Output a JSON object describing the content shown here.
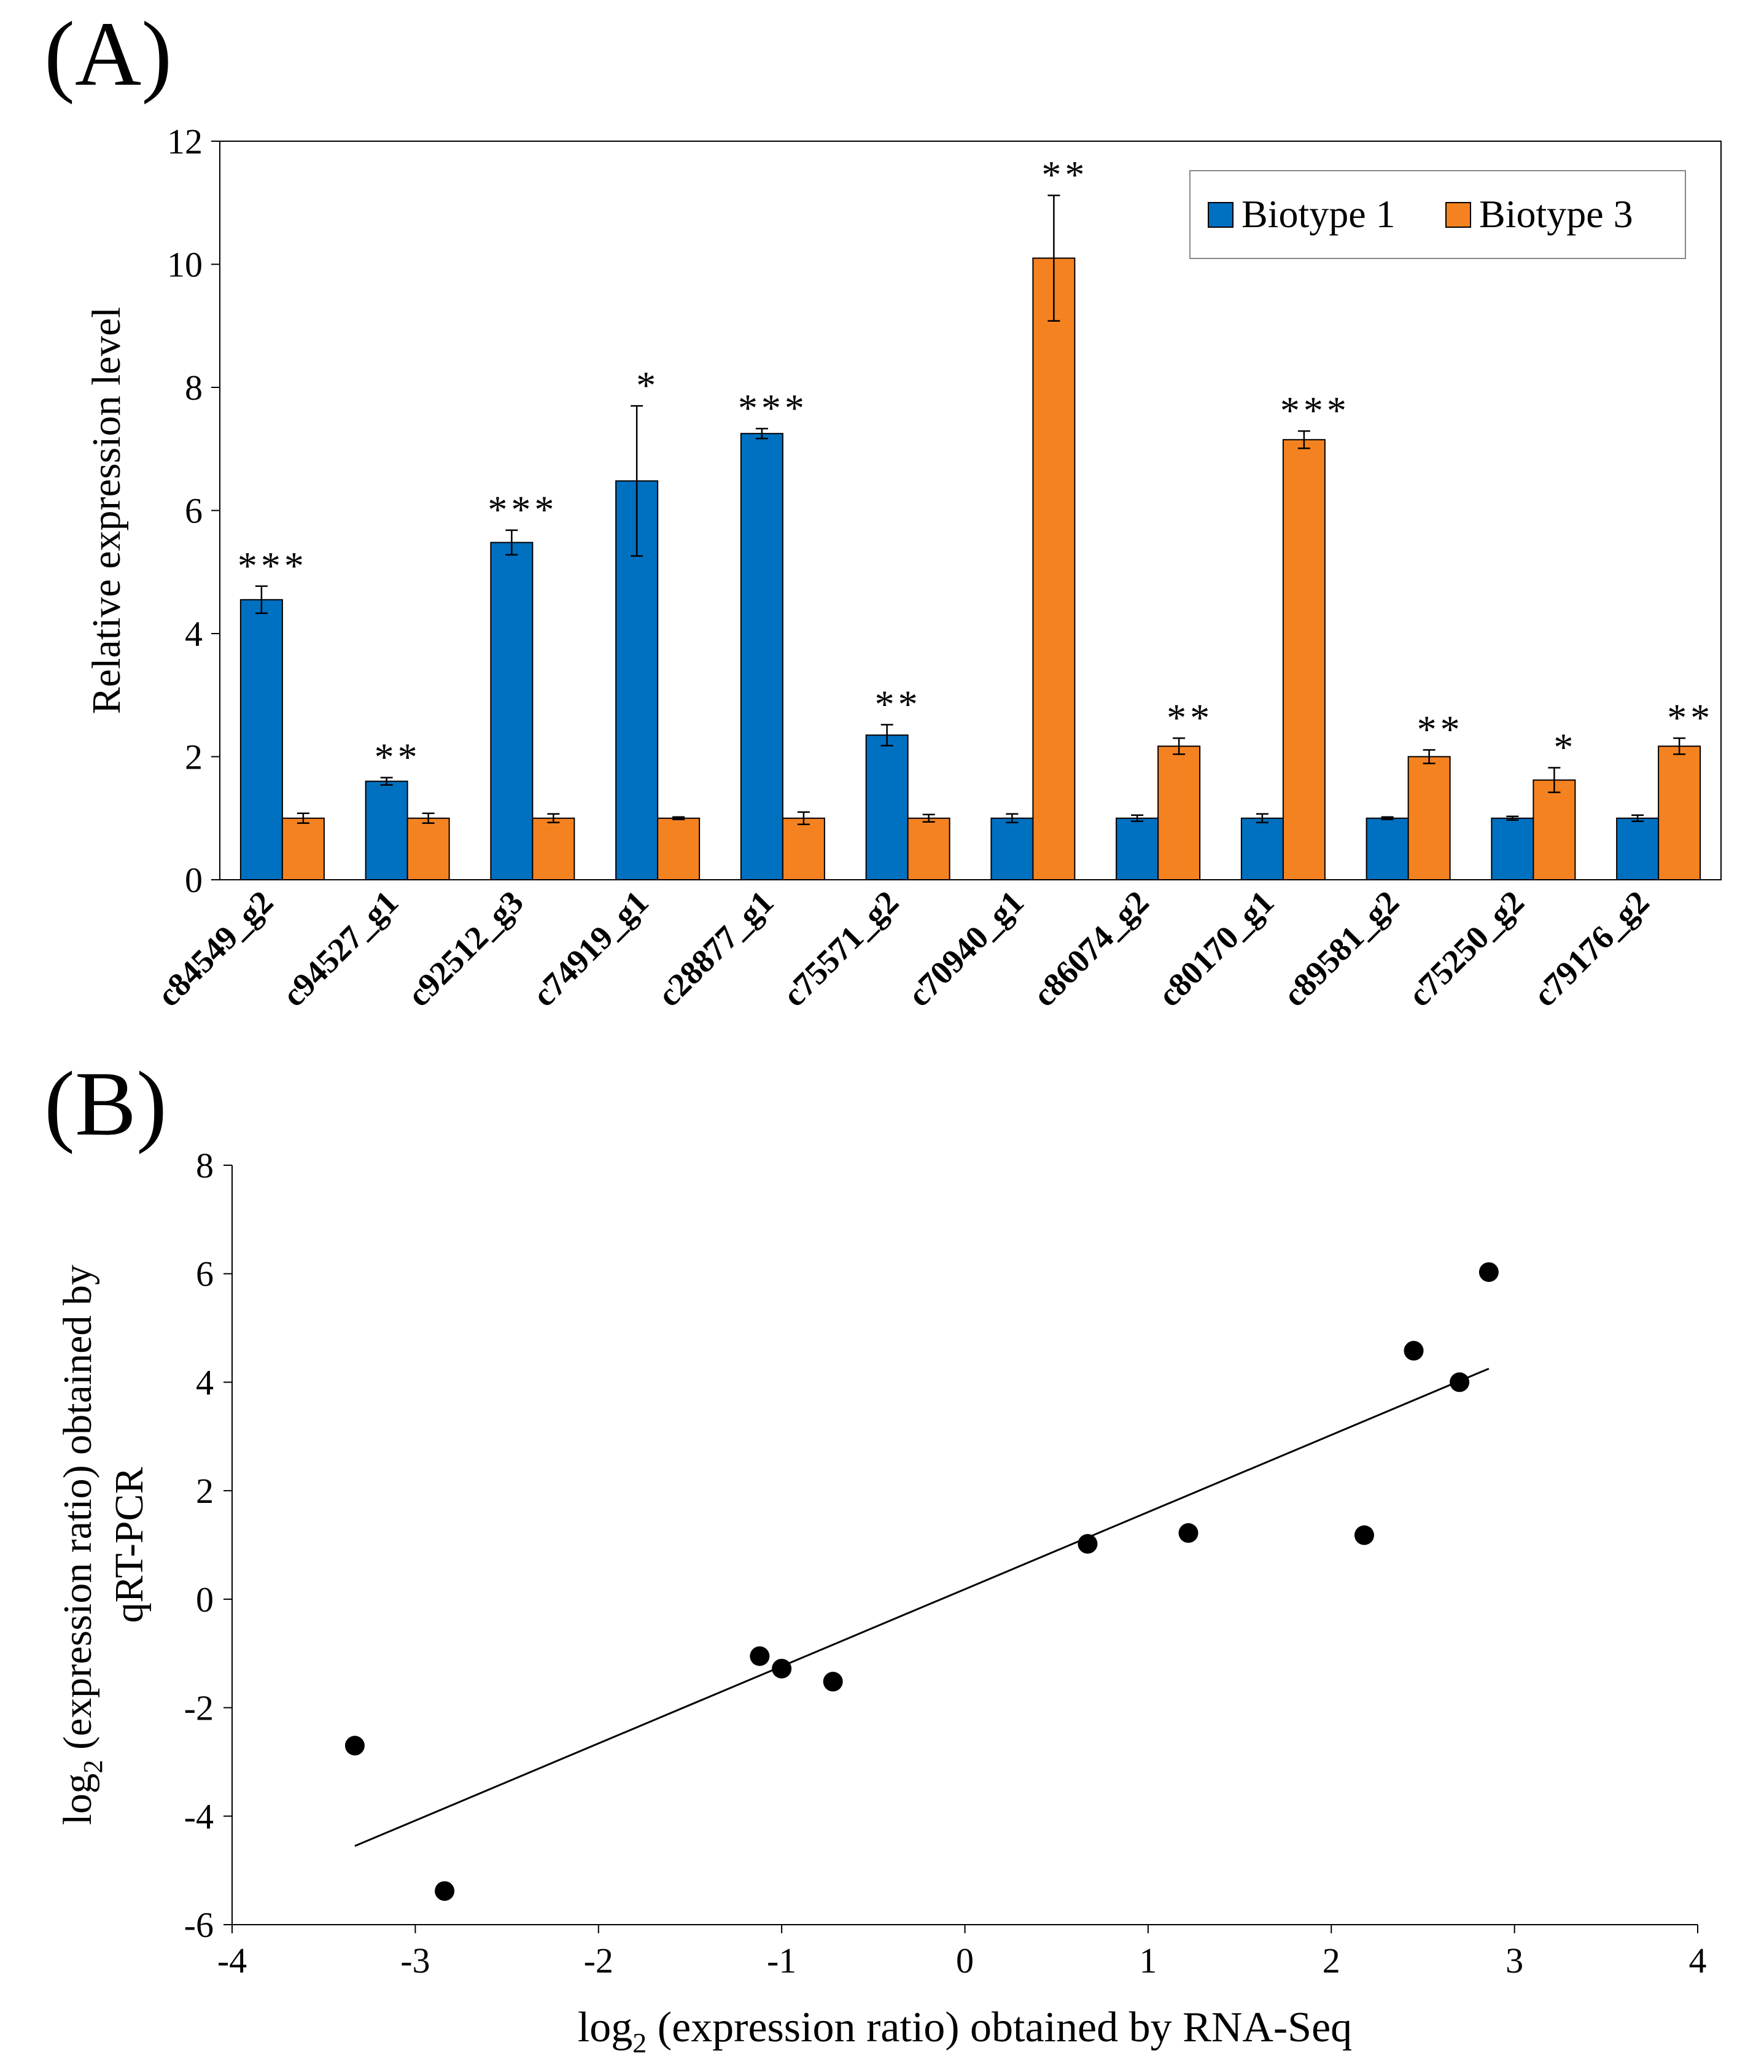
{
  "panel_labels": {
    "a": "(A)",
    "b": "(B)"
  },
  "colors": {
    "biotype1": "#0070C0",
    "biotype3": "#F58220",
    "axis": "#000000"
  },
  "chart_data": [
    {
      "type": "bar",
      "panel": "(A)",
      "xlabel": "",
      "ylabel": "Relative expression level",
      "ylim": [
        0,
        12
      ],
      "yticks": [
        0,
        2,
        4,
        6,
        8,
        10,
        12
      ],
      "legend_position": "top-right",
      "categories": [
        "c84549_g2",
        "c94527_g1",
        "c92512_g3",
        "c74919_g1",
        "c28877_g1",
        "c75571_g2",
        "c70940_g1",
        "c86074_g2",
        "c80170_g1",
        "c89581_g2",
        "c75250_g2",
        "c79176_g2"
      ],
      "series": [
        {
          "name": "Biotype 1",
          "values": [
            4.55,
            1.6,
            5.48,
            6.48,
            7.25,
            2.35,
            1.0,
            1.0,
            1.0,
            1.0,
            1.0,
            1.0
          ],
          "errors": [
            0.22,
            0.06,
            0.2,
            1.22,
            0.08,
            0.17,
            0.07,
            0.05,
            0.07,
            0.02,
            0.03,
            0.05
          ]
        },
        {
          "name": "Biotype 3",
          "values": [
            1.0,
            1.0,
            1.0,
            1.0,
            1.0,
            1.0,
            10.1,
            2.17,
            7.15,
            2.0,
            1.62,
            2.17
          ],
          "errors": [
            0.08,
            0.08,
            0.07,
            0.02,
            0.1,
            0.06,
            1.02,
            0.13,
            0.14,
            0.11,
            0.2,
            0.13
          ]
        }
      ],
      "significance": [
        "***",
        "**",
        "***",
        "*",
        "***",
        "**",
        "**",
        "**",
        "***",
        "**",
        "*",
        "**"
      ]
    },
    {
      "type": "scatter",
      "panel": "(B)",
      "xlabel_prefix": "log",
      "xlabel_sub": "2",
      "xlabel_rest": " (expression ratio) obtained by RNA-Seq",
      "ylabel_prefix": "log",
      "ylabel_sub": "2",
      "ylabel_rest": " (expression ratio) obtained by",
      "ylabel_line2": "qRT-PCR",
      "xlim": [
        -4,
        4
      ],
      "ylim": [
        -6,
        8
      ],
      "xticks": [
        -4,
        -3,
        -2,
        -1,
        0,
        1,
        2,
        3,
        4
      ],
      "yticks": [
        -6,
        -4,
        -2,
        0,
        2,
        4,
        6,
        8
      ],
      "points": [
        {
          "x": -3.33,
          "y": -2.7
        },
        {
          "x": -2.84,
          "y": -5.38
        },
        {
          "x": -1.12,
          "y": -1.05
        },
        {
          "x": -1.0,
          "y": -1.28
        },
        {
          "x": -0.72,
          "y": -1.52
        },
        {
          "x": 0.67,
          "y": 1.02
        },
        {
          "x": 1.22,
          "y": 1.22
        },
        {
          "x": 2.18,
          "y": 1.18
        },
        {
          "x": 2.45,
          "y": 4.58
        },
        {
          "x": 2.7,
          "y": 4.0
        },
        {
          "x": 2.86,
          "y": 6.03
        }
      ],
      "trendline": {
        "x": [
          -3.33,
          2.86
        ],
        "y": [
          -4.55,
          4.25
        ]
      }
    }
  ]
}
